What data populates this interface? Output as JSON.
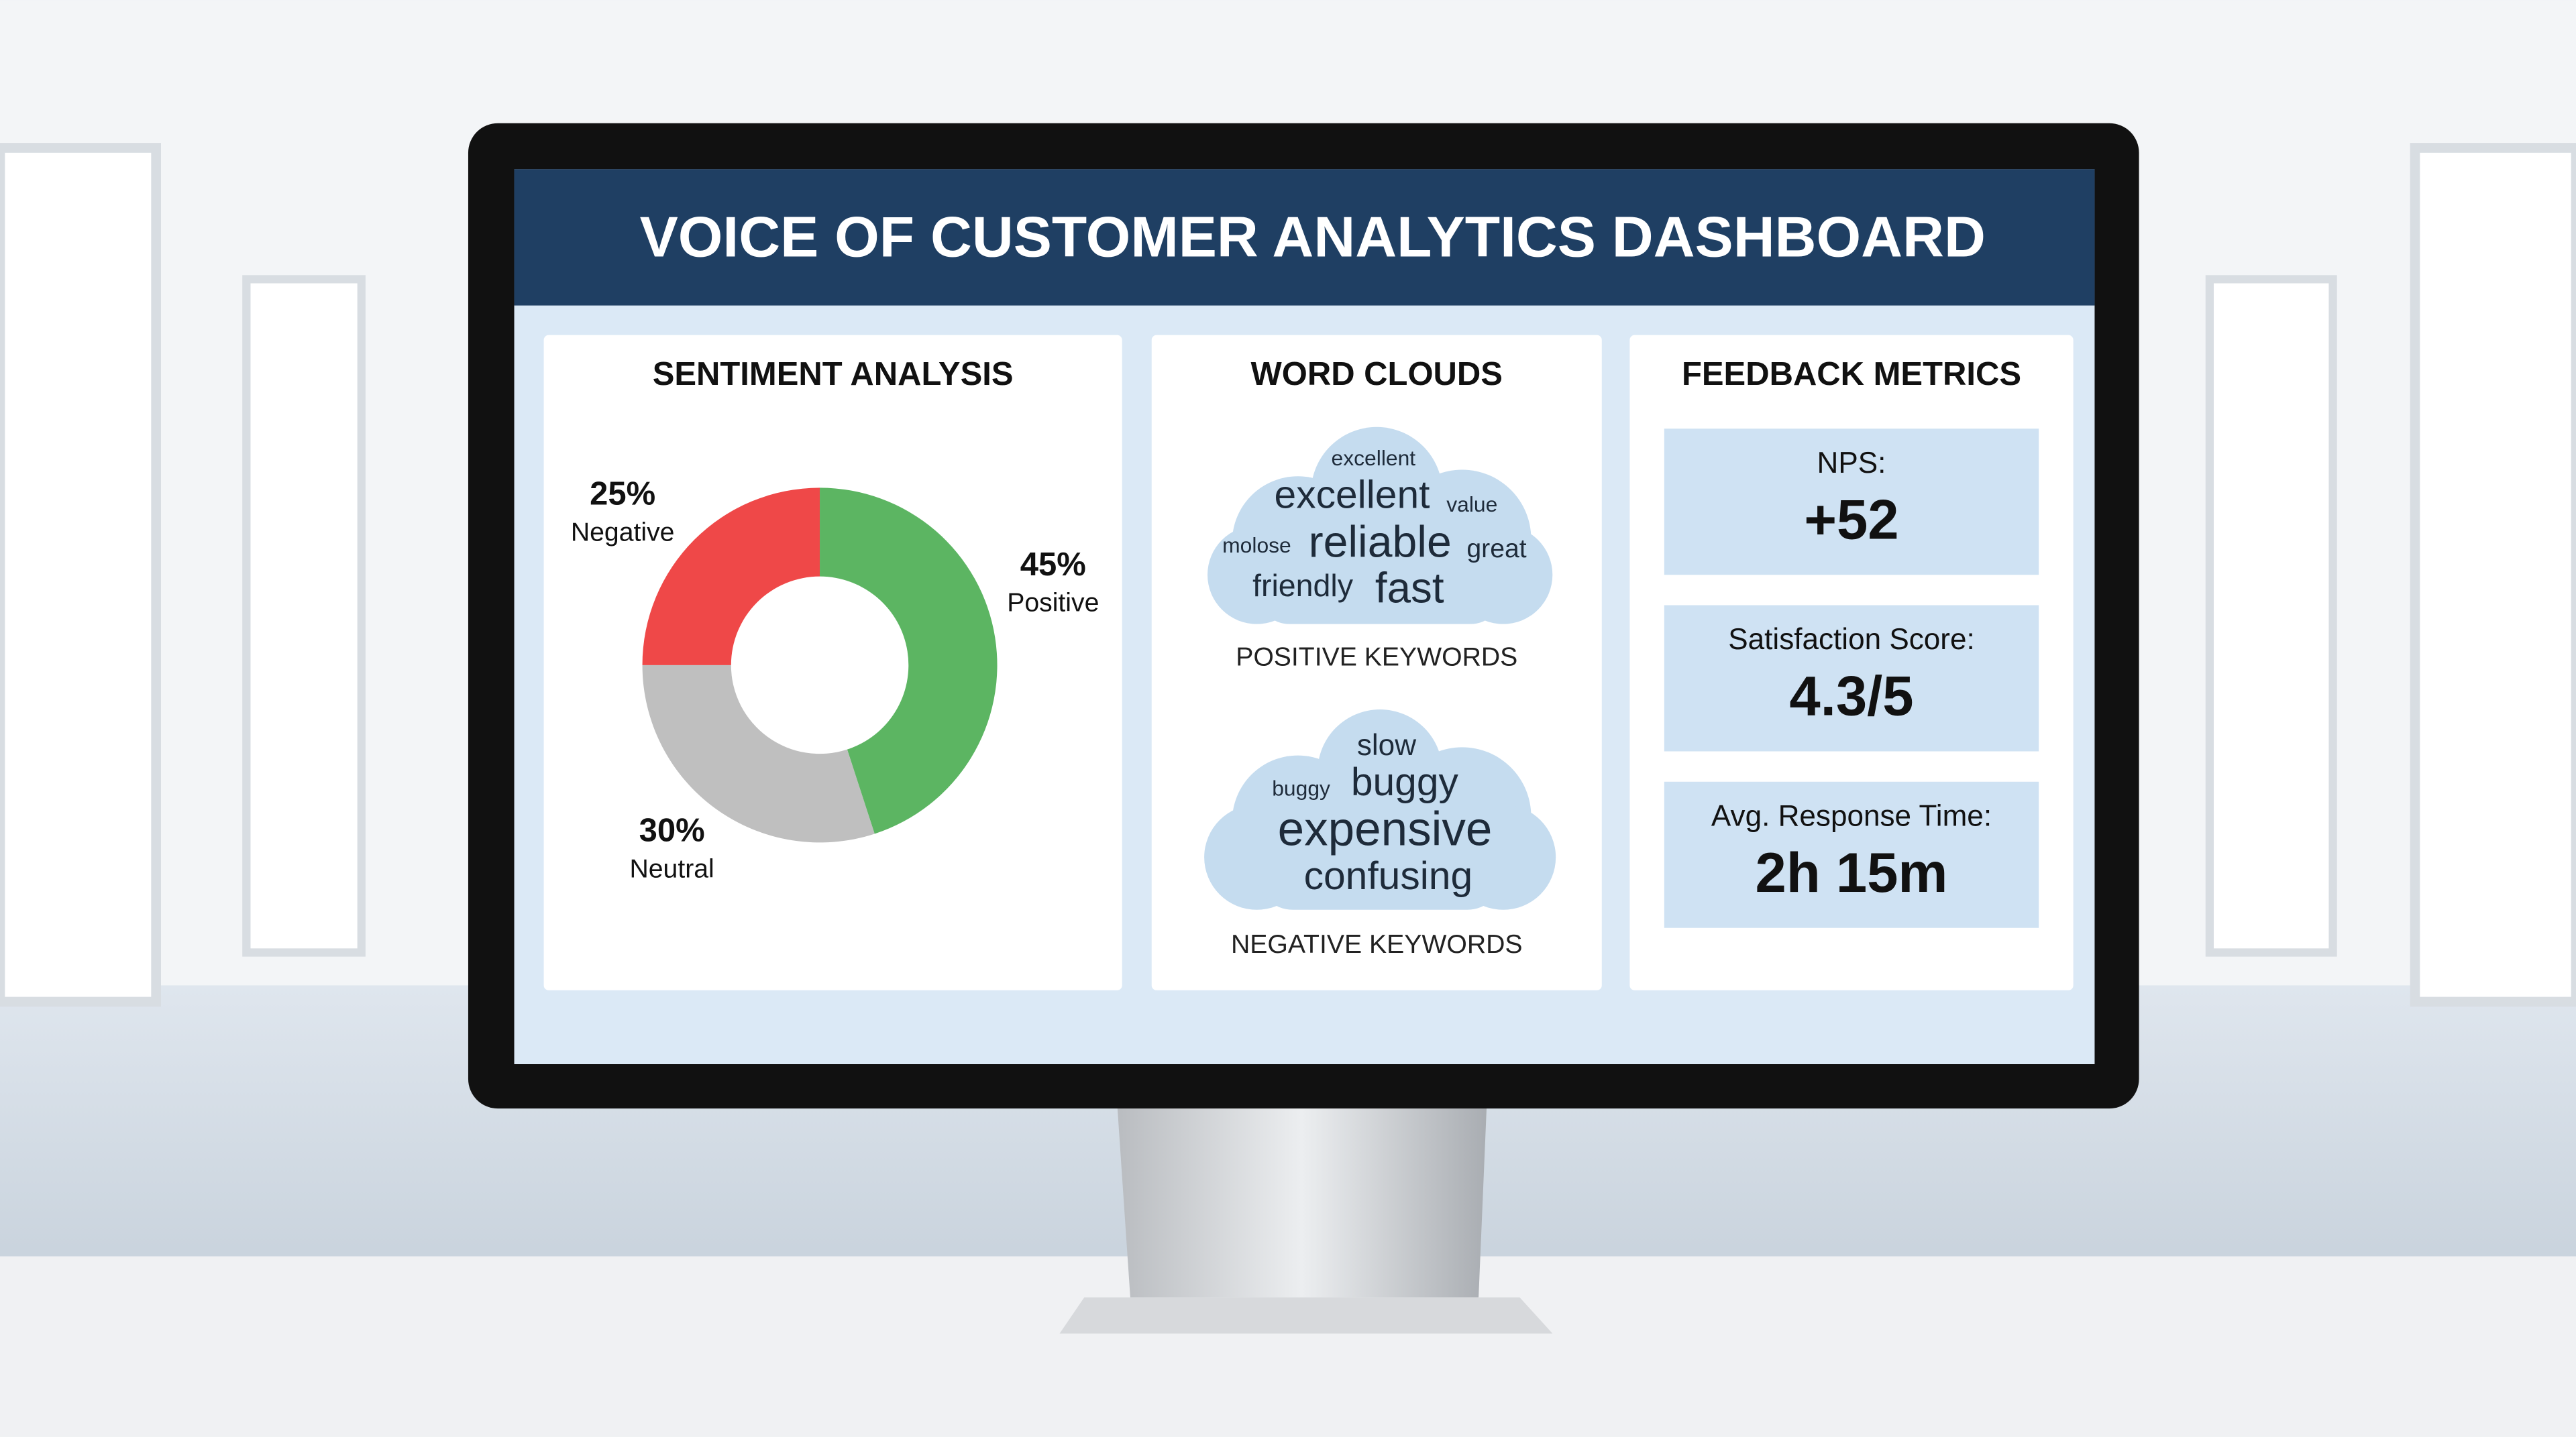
{
  "header": {
    "title": "VOICE OF CUSTOMER ANALYTICS DASHBOARD"
  },
  "chart_data": {
    "type": "pie",
    "title": "SENTIMENT ANALYSIS",
    "categories": [
      "Positive",
      "Neutral",
      "Negative"
    ],
    "values": [
      45,
      30,
      25
    ],
    "value_labels": [
      "45%",
      "30%",
      "25%"
    ],
    "colors": [
      "#5cb562",
      "#bfbfbf",
      "#ef4848"
    ]
  },
  "word_clouds": {
    "title": "WORD CLOUDS",
    "positive": {
      "label": "POSITIVE KEYWORDS",
      "words": [
        "excellent",
        "excellent",
        "value",
        "molose",
        "reliable",
        "great",
        "friendly",
        "fast"
      ]
    },
    "negative": {
      "label": "NEGATIVE KEYWORDS",
      "words": [
        "slow",
        "buggy",
        "buggy",
        "expensive",
        "confusing"
      ]
    }
  },
  "metrics": {
    "title": "FEEDBACK METRICS",
    "items": [
      {
        "label": "NPS:",
        "value": "+52"
      },
      {
        "label": "Satisfaction Score:",
        "value": "4.3/5"
      },
      {
        "label": "Avg. Response Time:",
        "value": "2h 15m"
      }
    ]
  }
}
